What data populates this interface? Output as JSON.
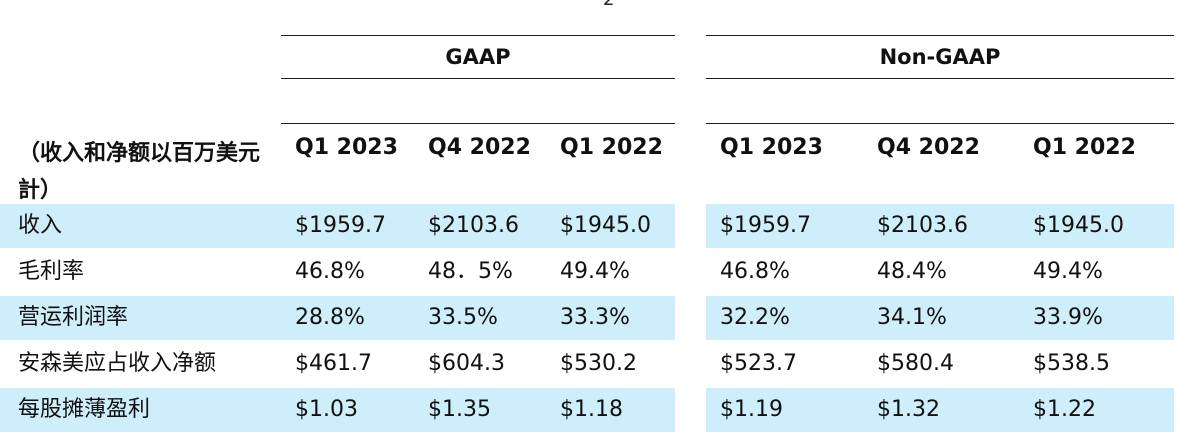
{
  "page_number": "2",
  "groups": {
    "gaap": "GAAP",
    "non_gaap": "Non-GAAP"
  },
  "header": {
    "row_title": "（收入和净额以百万美元計）",
    "columns": [
      "Q1 2023",
      "Q4 2022",
      "Q1 2022",
      "Q1 2023",
      "Q4 2022",
      "Q1 2022"
    ]
  },
  "rows": [
    {
      "label": "收入",
      "values": [
        "$1959.7",
        "$2103.6",
        "$1945.0",
        "$1959.7",
        "$2103.6",
        "$1945.0"
      ],
      "shaded": true
    },
    {
      "label": "毛利率",
      "values": [
        "46.8%",
        "48．5%",
        "49.4%",
        "46.8%",
        "48.4%",
        "49.4%"
      ],
      "shaded": false
    },
    {
      "label": "营运利润率",
      "values": [
        "28.8%",
        "33.5%",
        "33.3%",
        "32.2%",
        "34.1%",
        "33.9%"
      ],
      "shaded": true
    },
    {
      "label": "安森美应占收入净额",
      "values": [
        "$461.7",
        "$604.3",
        "$530.2",
        "$523.7",
        "$580.4",
        "$538.5"
      ],
      "shaded": false
    },
    {
      "label": "每股摊薄盈利",
      "values": [
        "$1.03",
        "$1.35",
        "$1.18",
        "$1.19",
        "$1.32",
        "$1.22"
      ],
      "shaded": true
    }
  ],
  "colors": {
    "band": "#cfeefb",
    "rule": "#1a1a1a",
    "text": "#111111"
  }
}
